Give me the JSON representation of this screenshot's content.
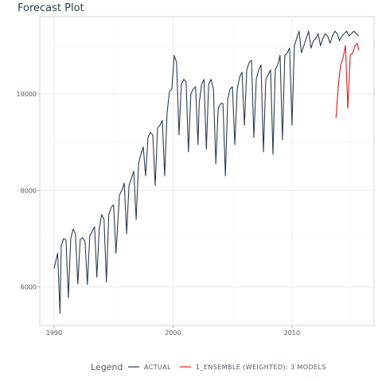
{
  "chart_data": {
    "type": "line",
    "title": "Forecast Plot",
    "xlabel": "",
    "ylabel": "",
    "xlim": [
      1988.8,
      2016.9
    ],
    "ylim": [
      5200,
      11600
    ],
    "x_ticks": [
      1990,
      2000,
      2010
    ],
    "x_tick_labels": [
      "1990",
      "2000",
      "2010"
    ],
    "y_ticks": [
      6000,
      8000,
      10000
    ],
    "y_tick_labels": [
      "6000",
      "8000",
      "10000"
    ],
    "grid": true,
    "legend_position": "bottom",
    "legend_title": "Legend",
    "series": [
      {
        "name": "ACTUAL",
        "color": "#2c3e50",
        "x": [
          1990.0,
          1990.3,
          1990.5,
          1990.6,
          1990.8,
          1991.0,
          1991.2,
          1991.4,
          1991.6,
          1991.8,
          1992.0,
          1992.2,
          1992.4,
          1992.6,
          1992.8,
          1993.0,
          1993.2,
          1993.4,
          1993.6,
          1993.8,
          1994.0,
          1994.2,
          1994.4,
          1994.6,
          1994.8,
          1995.0,
          1995.2,
          1995.5,
          1995.7,
          1995.9,
          1996.1,
          1996.3,
          1996.5,
          1996.7,
          1996.9,
          1997.1,
          1997.3,
          1997.5,
          1997.7,
          1997.9,
          1998.1,
          1998.3,
          1998.5,
          1998.7,
          1998.9,
          1999.1,
          1999.3,
          1999.5,
          1999.7,
          1999.9,
          2000.1,
          2000.3,
          2000.5,
          2000.7,
          2000.9,
          2001.1,
          2001.3,
          2001.5,
          2001.7,
          2001.9,
          2002.1,
          2002.2,
          2002.4,
          2002.6,
          2002.8,
          2003.0,
          2003.2,
          2003.4,
          2003.6,
          2003.8,
          2004.0,
          2004.2,
          2004.4,
          2004.6,
          2004.8,
          2005.0,
          2005.2,
          2005.4,
          2005.6,
          2005.8,
          2006.0,
          2006.2,
          2006.4,
          2006.6,
          2006.8,
          2007.0,
          2007.2,
          2007.4,
          2007.6,
          2007.8,
          2008.0,
          2008.2,
          2008.4,
          2008.6,
          2008.8,
          2009.0,
          2009.2,
          2009.4,
          2009.6,
          2009.8,
          2010.0,
          2010.2,
          2010.4,
          2010.6,
          2010.8,
          2011.0,
          2011.2,
          2011.4,
          2011.6,
          2011.8,
          2012.0,
          2012.2,
          2012.4,
          2012.6,
          2012.8,
          2013.0,
          2013.2,
          2013.4,
          2013.6,
          2013.8,
          2014.0,
          2014.2,
          2014.4,
          2014.6,
          2014.8,
          2015.0,
          2015.2,
          2015.4,
          2015.6
        ],
        "values": [
          6380,
          6700,
          5450,
          6850,
          7000,
          6980,
          5780,
          7000,
          7200,
          7100,
          6060,
          6980,
          7020,
          6950,
          6050,
          7050,
          7150,
          7250,
          6200,
          7200,
          7500,
          7400,
          6100,
          7500,
          7650,
          7700,
          6700,
          7900,
          8000,
          8150,
          7100,
          8100,
          8250,
          8400,
          7400,
          8550,
          8750,
          8900,
          8300,
          9100,
          9200,
          9150,
          8100,
          9300,
          9350,
          9450,
          8300,
          9600,
          10050,
          10100,
          10800,
          10650,
          9150,
          10200,
          10300,
          10250,
          8800,
          10000,
          10100,
          10150,
          8950,
          9800,
          10200,
          10300,
          8850,
          10200,
          10300,
          10100,
          8550,
          9700,
          9800,
          9800,
          8300,
          9900,
          10100,
          10150,
          8950,
          10100,
          10350,
          10450,
          9350,
          10500,
          10650,
          10700,
          9100,
          10300,
          10500,
          10600,
          8800,
          10300,
          10400,
          10500,
          8750,
          10500,
          10600,
          10800,
          9050,
          10800,
          10850,
          10950,
          9350,
          11000,
          11150,
          11300,
          10850,
          11000,
          11150,
          11300,
          10950,
          11100,
          11150,
          11250,
          11000,
          11150,
          11250,
          11200,
          11050,
          11200,
          11300,
          11250,
          11100,
          11200,
          11250,
          11300,
          11200,
          11250,
          11300,
          11250,
          11200
        ]
      },
      {
        "name": "1_ENSEMBLE (WEIGHTED): 3 MODELS",
        "color": "#e31a1c",
        "x": [
          2013.7,
          2013.9,
          2014.1,
          2014.3,
          2014.5,
          2014.7,
          2014.9,
          2015.1,
          2015.3,
          2015.5,
          2015.6
        ],
        "values": [
          9500,
          10200,
          10600,
          10750,
          11000,
          9700,
          10800,
          10850,
          11000,
          11050,
          10900
        ]
      }
    ]
  }
}
